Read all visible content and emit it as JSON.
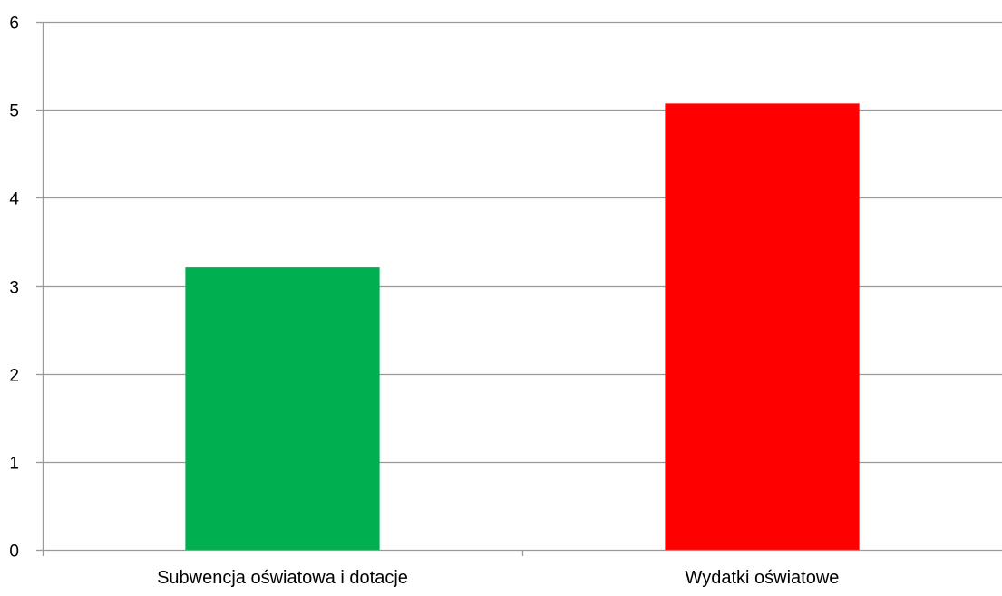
{
  "chart_data": {
    "type": "bar",
    "title": "",
    "xlabel": "",
    "ylabel": "",
    "categories": [
      "Subwencja oświatowa i dotacje",
      "Wydatki oświatowe"
    ],
    "values": [
      3.21,
      5.07
    ],
    "bar_colors": [
      "#00b050",
      "#ff0000"
    ],
    "ylim": [
      0,
      6
    ],
    "yticks": [
      "0",
      "1",
      "2",
      "3",
      "4",
      "5",
      "6"
    ],
    "grid": true,
    "grid_color": "#999999",
    "legend": "none"
  }
}
